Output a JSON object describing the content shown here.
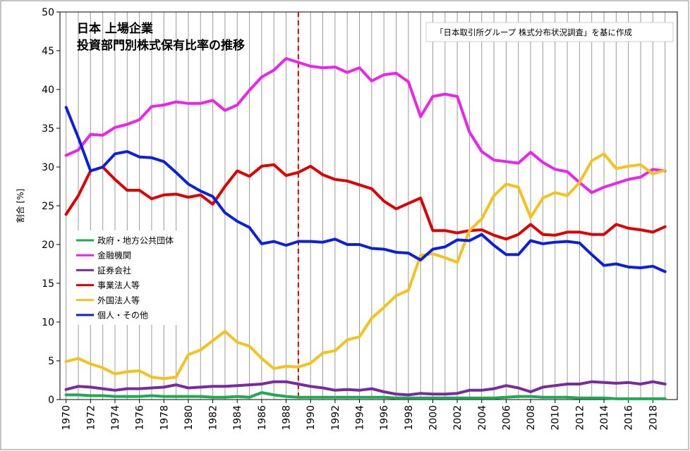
{
  "chart_data": {
    "type": "line",
    "title_line1": "日本 上場企業",
    "title_line2": "投資部門別株式保有比率の推移",
    "note": "「日本取引所グループ 株式分布状況調査」を基に作成",
    "xlabel": "",
    "ylabel": "割合 [%]",
    "ylim": [
      0,
      50
    ],
    "xlim": [
      1970,
      2020
    ],
    "y_ticks": [
      "0",
      "5",
      "10",
      "15",
      "20",
      "25",
      "30",
      "35",
      "40",
      "45",
      "50"
    ],
    "x_tick_labels": [
      "1970",
      "1972",
      "1974",
      "1976",
      "1978",
      "1980",
      "1982",
      "1984",
      "1986",
      "1988",
      "1990",
      "1992",
      "1994",
      "1996",
      "1998",
      "2000",
      "2002",
      "2004",
      "2006",
      "2008",
      "2010",
      "2012",
      "2014",
      "2016",
      "2018"
    ],
    "marker_year": 1989,
    "marker_color": "#dd0000",
    "grid": "vertical",
    "legend_position": "left-middle",
    "x": [
      1970,
      1971,
      1972,
      1973,
      1974,
      1975,
      1976,
      1977,
      1978,
      1979,
      1980,
      1981,
      1982,
      1983,
      1984,
      1985,
      1986,
      1987,
      1988,
      1989,
      1990,
      1991,
      1992,
      1993,
      1994,
      1995,
      1996,
      1997,
      1998,
      1999,
      2000,
      2001,
      2002,
      2003,
      2004,
      2005,
      2006,
      2007,
      2008,
      2009,
      2010,
      2011,
      2012,
      2013,
      2014,
      2015,
      2016,
      2017,
      2018,
      2019
    ],
    "series": [
      {
        "name": "政府・地方公共団体",
        "color": "#1daa50",
        "values": [
          0.6,
          0.6,
          0.5,
          0.5,
          0.4,
          0.4,
          0.4,
          0.5,
          0.4,
          0.4,
          0.4,
          0.4,
          0.3,
          0.3,
          0.4,
          0.3,
          0.9,
          0.6,
          0.4,
          0.3,
          0.3,
          0.3,
          0.3,
          0.3,
          0.3,
          0.3,
          0.3,
          0.2,
          0.2,
          0.2,
          0.2,
          0.2,
          0.2,
          0.2,
          0.2,
          0.2,
          0.3,
          0.4,
          0.4,
          0.3,
          0.3,
          0.3,
          0.2,
          0.2,
          0.2,
          0.1,
          0.1,
          0.1,
          0.1,
          0.1
        ]
      },
      {
        "name": "金融機関",
        "color": "#ee22ee",
        "values": [
          31.5,
          32.2,
          34.2,
          34.1,
          35.1,
          35.5,
          36.1,
          37.8,
          38.0,
          38.4,
          38.2,
          38.2,
          38.6,
          37.3,
          38.0,
          39.9,
          41.6,
          42.5,
          44.0,
          43.5,
          43.0,
          42.8,
          42.9,
          42.2,
          42.8,
          41.1,
          41.9,
          42.1,
          41.0,
          36.5,
          39.1,
          39.4,
          39.1,
          34.5,
          32.0,
          30.9,
          30.7,
          30.5,
          31.9,
          30.6,
          29.7,
          29.4,
          28.0,
          26.7,
          27.4,
          27.9,
          28.4,
          28.7,
          29.7,
          29.5
        ]
      },
      {
        "name": "証券会社",
        "color": "#7a2aa0",
        "values": [
          1.3,
          1.7,
          1.6,
          1.4,
          1.2,
          1.4,
          1.4,
          1.5,
          1.6,
          1.9,
          1.5,
          1.6,
          1.7,
          1.7,
          1.8,
          1.9,
          2.0,
          2.3,
          2.3,
          2.0,
          1.7,
          1.5,
          1.2,
          1.3,
          1.2,
          1.4,
          1.0,
          0.7,
          0.6,
          0.8,
          0.7,
          0.7,
          0.8,
          1.2,
          1.2,
          1.4,
          1.8,
          1.5,
          1.0,
          1.6,
          1.8,
          2.0,
          2.0,
          2.3,
          2.2,
          2.1,
          2.2,
          2.0,
          2.3,
          2.0
        ]
      },
      {
        "name": "事業法人等",
        "color": "#e00000",
        "values": [
          23.9,
          26.3,
          29.5,
          30.0,
          28.4,
          27.0,
          27.0,
          25.9,
          26.4,
          26.5,
          26.1,
          26.4,
          25.2,
          27.5,
          29.5,
          28.8,
          30.1,
          30.3,
          28.9,
          29.3,
          30.1,
          29.0,
          28.4,
          28.2,
          27.7,
          27.2,
          25.6,
          24.6,
          25.3,
          26.0,
          21.8,
          21.8,
          21.5,
          21.8,
          21.9,
          21.2,
          20.7,
          21.3,
          22.6,
          21.3,
          21.2,
          21.6,
          21.6,
          21.3,
          21.3,
          22.6,
          22.1,
          21.9,
          21.6,
          22.3
        ]
      },
      {
        "name": "外国法人等",
        "color": "#f5c21b",
        "values": [
          4.9,
          5.3,
          4.6,
          4.1,
          3.3,
          3.6,
          3.7,
          2.9,
          2.7,
          2.9,
          5.8,
          6.4,
          7.6,
          8.8,
          7.4,
          6.9,
          5.3,
          4.0,
          4.3,
          4.2,
          4.7,
          6.0,
          6.3,
          7.7,
          8.1,
          10.5,
          11.9,
          13.4,
          14.1,
          18.6,
          18.8,
          18.3,
          17.7,
          21.8,
          23.3,
          26.3,
          27.8,
          27.4,
          23.5,
          26.0,
          26.7,
          26.3,
          28.0,
          30.8,
          31.7,
          29.8,
          30.1,
          30.3,
          29.1,
          29.6
        ]
      },
      {
        "name": "個人・その他",
        "color": "#0a1fe0",
        "values": [
          37.7,
          33.8,
          29.5,
          30.0,
          31.7,
          32.0,
          31.3,
          31.2,
          30.7,
          29.3,
          27.8,
          26.9,
          26.2,
          24.1,
          23.0,
          22.2,
          20.1,
          20.4,
          19.9,
          20.4,
          20.4,
          20.3,
          20.7,
          20.0,
          20.0,
          19.5,
          19.4,
          19.0,
          18.9,
          18.0,
          19.4,
          19.7,
          20.6,
          20.5,
          21.3,
          19.9,
          18.7,
          18.7,
          20.5,
          20.1,
          20.3,
          20.4,
          20.2,
          18.7,
          17.3,
          17.5,
          17.1,
          17.0,
          17.2,
          16.5
        ]
      }
    ]
  }
}
